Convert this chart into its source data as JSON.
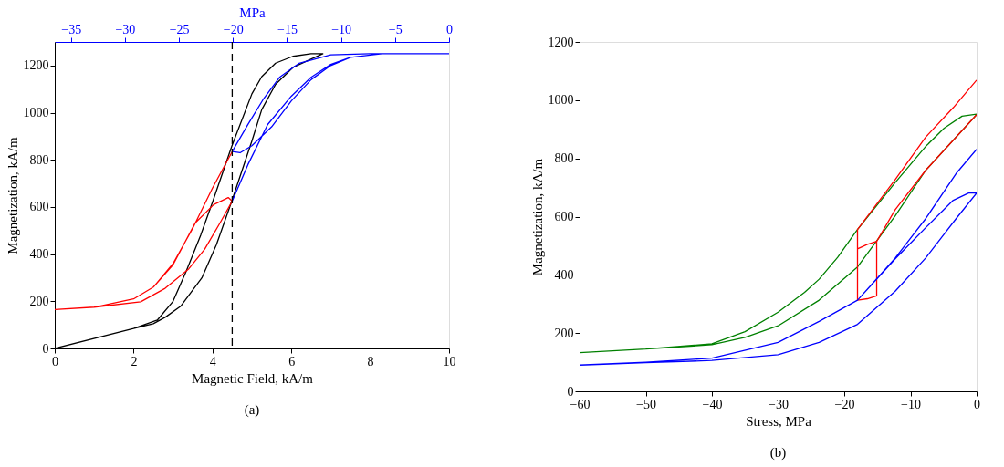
{
  "chart_data": [
    {
      "type": "line",
      "xlabel": "Magnetic Field, kA/m",
      "ylabel": "Magnetization, kA/m",
      "x2label": "MPa",
      "xlim": [
        0,
        10
      ],
      "xticks": [
        0,
        2,
        4,
        6,
        8,
        10
      ],
      "ylim": [
        0,
        1300
      ],
      "yticks": [
        0,
        200,
        400,
        600,
        800,
        1000,
        1200
      ],
      "x2lim": [
        -36.5,
        0
      ],
      "x2ticks": [
        -35,
        -30,
        -25,
        -20,
        -15,
        -10,
        -5,
        0
      ],
      "grid": false,
      "marker": "none",
      "annotations": [
        "(a)"
      ],
      "ref_lines": [
        {
          "axis": "x",
          "value": 4.5,
          "color": "#000000",
          "line_style": "dashed"
        }
      ],
      "series": [
        {
          "color": "#000000",
          "x": [
            0,
            2,
            2.6,
            3.0,
            3.33,
            3.7,
            4.0,
            4.49,
            5.0,
            5.25,
            5.6,
            6.04,
            6.5,
            6.8,
            6.04,
            5.6,
            5.25,
            5.0,
            4.49,
            4.1,
            3.73,
            3.2,
            2.8,
            2.5,
            2
          ],
          "values": [
            0,
            85,
            120,
            200,
            326,
            480,
            620,
            858,
            1080,
            1153,
            1210,
            1239,
            1250,
            1250,
            1192,
            1120,
            1013,
            880,
            625,
            440,
            299,
            180,
            132,
            105,
            85
          ]
        },
        {
          "color": "#ff0000",
          "x": [
            4.5,
            4,
            3.5,
            3,
            2.5,
            2,
            1,
            0,
            1,
            2,
            2.5,
            3,
            3.56,
            4.03,
            4.4,
            4.5,
            4.19,
            3.8,
            3.4,
            2.8,
            2.18,
            1,
            0
          ],
          "values": [
            835,
            680,
            510,
            360,
            260,
            210,
            175,
            165,
            175,
            210,
            260,
            355,
            532,
            610,
            640,
            625,
            532,
            420,
            338,
            255,
            198,
            175,
            165
          ]
        },
        {
          "color": "#0000ff",
          "x": [
            10,
            8,
            7,
            6.2,
            5.7,
            5.3,
            4.9,
            4.5,
            4.7,
            5.0,
            5.5,
            6.0,
            6.5,
            7,
            7.5,
            8.3,
            7.5,
            7,
            6.5,
            6.0,
            5.4,
            4.9,
            4.5
          ],
          "values": [
            1250,
            1250,
            1245,
            1210,
            1150,
            1060,
            950,
            835,
            830,
            860,
            940,
            1050,
            1140,
            1200,
            1235,
            1250,
            1235,
            1205,
            1150,
            1070,
            950,
            780,
            625
          ]
        }
      ]
    },
    {
      "type": "line",
      "xlabel": "Stress, MPa",
      "ylabel": "Magnetization, kA/m",
      "xlim": [
        -60,
        0
      ],
      "xticks": [
        -60,
        -50,
        -40,
        -30,
        -20,
        -10,
        0
      ],
      "ylim": [
        0,
        1200
      ],
      "yticks": [
        0,
        200,
        400,
        600,
        800,
        1000,
        1200
      ],
      "grid": false,
      "marker": "none",
      "annotations": [
        "(b)"
      ],
      "series": [
        {
          "color": "#008000",
          "x": [
            0,
            -7.7,
            -12.3,
            -18,
            -23.8,
            -30,
            -35,
            -40,
            -50,
            -60,
            -50,
            -40,
            -35,
            -30,
            -26,
            -23.8,
            -21,
            -18,
            -12.3,
            -7.7,
            -4.9,
            -2.2,
            0
          ],
          "values": [
            950,
            759,
            603,
            427,
            313,
            225,
            185,
            160,
            145,
            133,
            145,
            163,
            205,
            272,
            340,
            385,
            460,
            556,
            717,
            841,
            904,
            945,
            952
          ]
        },
        {
          "color": "#ff0000",
          "x": [
            0,
            -3.5,
            -7.7,
            -12.3,
            -18,
            -18,
            -16.5,
            -15.1,
            -15.1,
            -16.5,
            -18,
            -16.5,
            -15.1,
            -12.3,
            -7.7,
            0
          ],
          "values": [
            1069,
            975,
            873,
            727,
            556,
            313,
            318,
            328,
            515,
            505,
            489,
            505,
            515,
            624,
            759,
            950
          ]
        },
        {
          "color": "#0000ff",
          "x": [
            0,
            -3.1,
            -7.7,
            -12.3,
            -18,
            -23.8,
            -30,
            -40,
            -50,
            -60,
            -50,
            -40,
            -30,
            -23.8,
            -18,
            -12.3,
            -7.7,
            -3.1,
            0,
            -1.2,
            -3.6,
            -7.7,
            -12.3,
            -18
          ],
          "values": [
            831,
            748,
            593,
            458,
            313,
            240,
            168,
            114,
            100,
            90,
            98,
            106,
            126,
            168,
            230,
            344,
            458,
            593,
            681,
            681,
            655,
            562,
            455,
            313
          ]
        }
      ]
    }
  ]
}
